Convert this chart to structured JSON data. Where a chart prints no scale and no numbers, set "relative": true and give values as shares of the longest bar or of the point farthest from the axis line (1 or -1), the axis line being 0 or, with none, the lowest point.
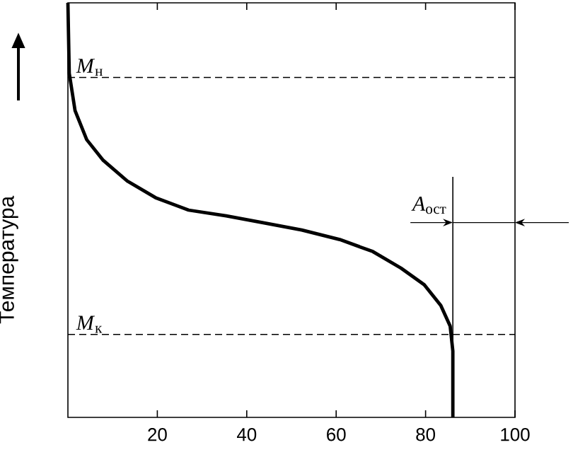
{
  "chart_data": {
    "type": "line",
    "relative": true,
    "ylabel": "Температура",
    "xlim": [
      0,
      100
    ],
    "xticks": [
      20,
      40,
      60,
      80,
      100
    ],
    "x": [
      0,
      0.3,
      1.6,
      4.2,
      7.9,
      13.3,
      19.6,
      27,
      35.4,
      43.9,
      52.3,
      60.8,
      68.2,
      74.5,
      79.7,
      83.4,
      85.5,
      86.1,
      86.1
    ],
    "values": [
      1.0,
      0.83,
      0.74,
      0.67,
      0.62,
      0.57,
      0.53,
      0.5,
      0.486,
      0.469,
      0.452,
      0.429,
      0.4,
      0.36,
      0.32,
      0.27,
      0.22,
      0.16,
      0
    ],
    "color": "#000000",
    "ref_lines": [
      {
        "axis": "y",
        "value": 0.82,
        "label": "*M*$_{н}$",
        "line_style": "dashed"
      },
      {
        "axis": "y",
        "value": 0.2,
        "label": "*M*$_{к}$",
        "line_style": "dashed"
      },
      {
        "axis": "x",
        "value": 86.1,
        "label": "*A*$_{ост}$"
      }
    ]
  }
}
